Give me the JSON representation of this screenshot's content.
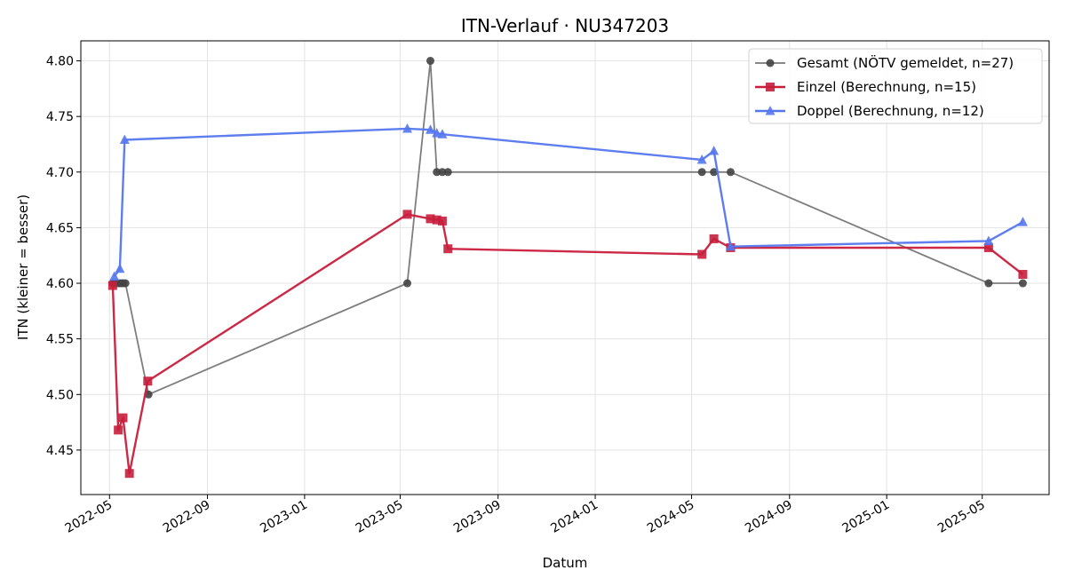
{
  "chart_data": {
    "type": "line",
    "title": "ITN-Verlauf · NU347203",
    "xlabel": "Datum",
    "ylabel": "ITN  (kleiner = besser)",
    "x_axis": "date",
    "xlim": [
      "2022-03-26",
      "2025-07-24"
    ],
    "ylim": [
      4.41,
      4.818
    ],
    "x_ticks": [
      "2022-05",
      "2022-09",
      "2023-01",
      "2023-05",
      "2023-09",
      "2024-01",
      "2024-05",
      "2024-09",
      "2025-01",
      "2025-05"
    ],
    "y_ticks": [
      "4.45",
      "4.50",
      "4.55",
      "4.60",
      "4.65",
      "4.70",
      "4.75",
      "4.80"
    ],
    "grid": true,
    "legend_position": "top-right",
    "series": [
      {
        "name": "Gesamt (NÖTV gemeldet, n=27)",
        "color": "#777777",
        "marker_color": "#444444",
        "marker": "circle",
        "points": [
          {
            "x": "2022-05-05",
            "y": 4.6
          },
          {
            "x": "2022-05-08",
            "y": 4.6
          },
          {
            "x": "2022-05-12",
            "y": 4.6
          },
          {
            "x": "2022-05-15",
            "y": 4.6
          },
          {
            "x": "2022-05-18",
            "y": 4.6
          },
          {
            "x": "2022-05-21",
            "y": 4.6
          },
          {
            "x": "2022-06-19",
            "y": 4.5
          },
          {
            "x": "2023-05-10",
            "y": 4.6
          },
          {
            "x": "2023-06-08",
            "y": 4.8
          },
          {
            "x": "2023-06-16",
            "y": 4.7
          },
          {
            "x": "2023-06-23",
            "y": 4.7
          },
          {
            "x": "2023-06-30",
            "y": 4.7
          },
          {
            "x": "2024-05-14",
            "y": 4.7
          },
          {
            "x": "2024-05-29",
            "y": 4.7
          },
          {
            "x": "2024-06-19",
            "y": 4.7
          },
          {
            "x": "2025-05-09",
            "y": 4.6
          },
          {
            "x": "2025-06-21",
            "y": 4.6
          }
        ]
      },
      {
        "name": "Einzel (Berechnung, n=15)",
        "color": "#c81e3c",
        "marker_color": "#c81e3c",
        "marker": "square",
        "points": [
          {
            "x": "2022-05-05",
            "y": 4.598
          },
          {
            "x": "2022-05-12",
            "y": 4.468
          },
          {
            "x": "2022-05-18",
            "y": 4.479
          },
          {
            "x": "2022-05-26",
            "y": 4.429
          },
          {
            "x": "2022-06-18",
            "y": 4.512
          },
          {
            "x": "2023-05-10",
            "y": 4.662
          },
          {
            "x": "2023-06-08",
            "y": 4.658
          },
          {
            "x": "2023-06-16",
            "y": 4.657
          },
          {
            "x": "2023-06-23",
            "y": 4.656
          },
          {
            "x": "2023-06-30",
            "y": 4.631
          },
          {
            "x": "2024-05-14",
            "y": 4.626
          },
          {
            "x": "2024-05-29",
            "y": 4.64
          },
          {
            "x": "2024-06-19",
            "y": 4.632
          },
          {
            "x": "2025-05-09",
            "y": 4.632
          },
          {
            "x": "2025-06-21",
            "y": 4.608
          }
        ]
      },
      {
        "name": "Doppel (Berechnung, n=12)",
        "color": "#5577ee",
        "marker_color": "#5577ee",
        "marker": "triangle",
        "points": [
          {
            "x": "2022-05-07",
            "y": 4.606
          },
          {
            "x": "2022-05-14",
            "y": 4.613
          },
          {
            "x": "2022-05-20",
            "y": 4.729
          },
          {
            "x": "2023-05-10",
            "y": 4.739
          },
          {
            "x": "2023-06-08",
            "y": 4.738
          },
          {
            "x": "2023-06-16",
            "y": 4.735
          },
          {
            "x": "2023-06-23",
            "y": 4.734
          },
          {
            "x": "2024-05-14",
            "y": 4.711
          },
          {
            "x": "2024-05-29",
            "y": 4.719
          },
          {
            "x": "2024-06-19",
            "y": 4.633
          },
          {
            "x": "2025-05-09",
            "y": 4.638
          },
          {
            "x": "2025-06-21",
            "y": 4.655
          }
        ]
      }
    ]
  }
}
